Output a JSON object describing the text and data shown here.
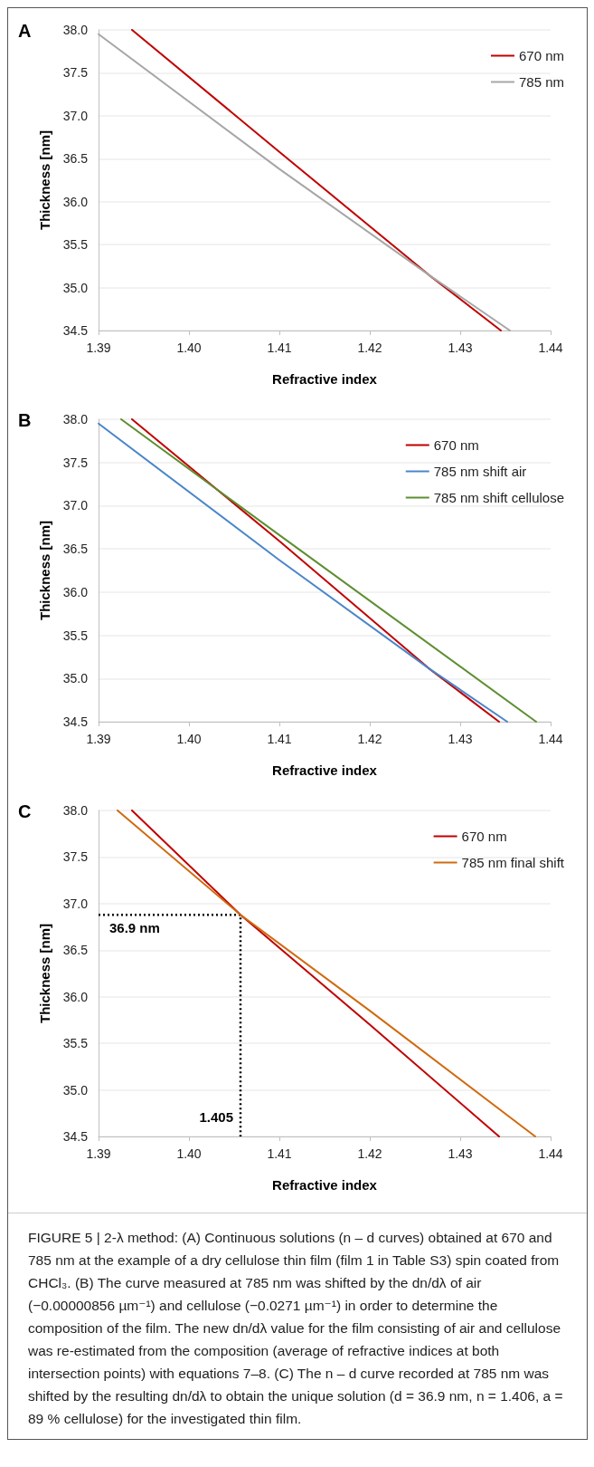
{
  "chart_data": [
    {
      "type": "line",
      "title": "A",
      "xlabel": "Refractive index",
      "ylabel": "Thickness [nm]",
      "xlim": [
        1.39,
        1.44
      ],
      "ylim": [
        34.5,
        38.0
      ],
      "xticks": [
        {
          "value": 1.39,
          "label": "1.39"
        },
        {
          "value": 1.4,
          "label": "1.40"
        },
        {
          "value": 1.41,
          "label": "1.41"
        },
        {
          "value": 1.42,
          "label": "1.42"
        },
        {
          "value": 1.43,
          "label": "1.43"
        },
        {
          "value": 1.44,
          "label": "1.44"
        }
      ],
      "yticks": [
        {
          "value": 34.5,
          "label": "34.5"
        },
        {
          "value": 35.0,
          "label": "35.0"
        },
        {
          "value": 35.5,
          "label": "35.5"
        },
        {
          "value": 36.0,
          "label": "36.0"
        },
        {
          "value": 36.5,
          "label": "36.5"
        },
        {
          "value": 37.0,
          "label": "37.0"
        },
        {
          "value": 37.5,
          "label": "37.5"
        },
        {
          "value": 38.0,
          "label": "38.0"
        }
      ],
      "grid": "y",
      "legend": "top right",
      "marker": "none",
      "line_style": "solid",
      "series": [
        {
          "name": "670 nm",
          "color": "#c00000",
          "x": [
            1.3937,
            1.41,
            1.4265,
            1.4345
          ],
          "values": [
            38.0,
            36.58,
            35.15,
            34.5
          ]
        },
        {
          "name": "785 nm",
          "color": "#a6a6a6",
          "x": [
            1.39,
            1.41,
            1.4265,
            1.4355
          ],
          "values": [
            37.95,
            36.38,
            35.15,
            34.5
          ]
        }
      ]
    },
    {
      "type": "line",
      "title": "B",
      "xlabel": "Refractive index",
      "ylabel": "Thickness [nm]",
      "xlim": [
        1.39,
        1.44
      ],
      "ylim": [
        34.5,
        38.0
      ],
      "xticks": [
        {
          "value": 1.39,
          "label": "1.39"
        },
        {
          "value": 1.4,
          "label": "1.40"
        },
        {
          "value": 1.41,
          "label": "1.41"
        },
        {
          "value": 1.42,
          "label": "1.42"
        },
        {
          "value": 1.43,
          "label": "1.43"
        },
        {
          "value": 1.44,
          "label": "1.44"
        }
      ],
      "yticks": [
        {
          "value": 34.5,
          "label": "34.5"
        },
        {
          "value": 35.0,
          "label": "35.0"
        },
        {
          "value": 35.5,
          "label": "35.5"
        },
        {
          "value": 36.0,
          "label": "36.0"
        },
        {
          "value": 36.5,
          "label": "36.5"
        },
        {
          "value": 37.0,
          "label": "37.0"
        },
        {
          "value": 37.5,
          "label": "37.5"
        },
        {
          "value": 38.0,
          "label": "38.0"
        }
      ],
      "grid": "y",
      "legend": "top right",
      "marker": "none",
      "line_style": "solid",
      "series": [
        {
          "name": "670 nm",
          "color": "#c00000",
          "x": [
            1.3937,
            1.41,
            1.4265,
            1.4343
          ],
          "values": [
            38.0,
            36.59,
            35.12,
            34.5
          ]
        },
        {
          "name": "785 nm shift air",
          "color": "#4a86c8",
          "x": [
            1.39,
            1.41,
            1.4265,
            1.4352
          ],
          "values": [
            37.95,
            36.37,
            35.12,
            34.5
          ]
        },
        {
          "name": "785 nm shift cellulose",
          "color": "#5e8e32",
          "x": [
            1.3925,
            1.41,
            1.4384
          ],
          "values": [
            38.0,
            36.66,
            34.5
          ]
        }
      ]
    },
    {
      "type": "line",
      "title": "C",
      "xlabel": "Refractive index",
      "ylabel": "Thickness [nm]",
      "xlim": [
        1.39,
        1.44
      ],
      "ylim": [
        34.5,
        38.0
      ],
      "xticks": [
        {
          "value": 1.39,
          "label": "1.39"
        },
        {
          "value": 1.4,
          "label": "1.40"
        },
        {
          "value": 1.41,
          "label": "1.41"
        },
        {
          "value": 1.42,
          "label": "1.42"
        },
        {
          "value": 1.43,
          "label": "1.43"
        },
        {
          "value": 1.44,
          "label": "1.44"
        }
      ],
      "yticks": [
        {
          "value": 34.5,
          "label": "34.5"
        },
        {
          "value": 35.0,
          "label": "35.0"
        },
        {
          "value": 35.5,
          "label": "35.5"
        },
        {
          "value": 36.0,
          "label": "36.0"
        },
        {
          "value": 36.5,
          "label": "36.5"
        },
        {
          "value": 37.0,
          "label": "37.0"
        },
        {
          "value": 37.5,
          "label": "37.5"
        },
        {
          "value": 38.0,
          "label": "38.0"
        }
      ],
      "grid": "y",
      "legend": "top right",
      "marker": "none",
      "line_style": "solid",
      "series": [
        {
          "name": "670 nm",
          "color": "#c00000",
          "x": [
            1.3937,
            1.4057,
            1.42,
            1.4343
          ],
          "values": [
            38.0,
            36.88,
            35.7,
            34.5
          ]
        },
        {
          "name": "785 nm final shift",
          "color": "#d06a10",
          "x": [
            1.3921,
            1.4057,
            1.42,
            1.4383
          ],
          "values": [
            38.0,
            36.88,
            35.85,
            34.5
          ]
        },
        {
          "color": "#000000",
          "line_style": "dotted",
          "x": [
            1.39,
            1.4057,
            1.4057
          ],
          "values": [
            36.88,
            36.88,
            34.5
          ]
        }
      ],
      "annotations": [
        {
          "text": "36.9 nm",
          "x": 1.39,
          "y": 36.88
        },
        {
          "text": "1.405",
          "x": 1.4057,
          "y": 34.5
        },
        "FIGURE 5 | 2-λ method: (A) Continuous solutions (n – d curves) obtained at 670 and 785 nm at the example of a dry cellulose thin film (film 1 in Table S3) spin coated from CHCl₃. (B) The curve measured at 785 nm was shifted by the dn/dλ of air (−0.00000856 µm⁻¹) and cellulose (−0.0271 µm⁻¹) in order to determine the composition of the film. The new dn/dλ value for the film consisting of air and cellulose was re-estimated from the composition (average of refractive indices at both intersection points) with equations 7–8. (C) The n – d curve recorded at 785 nm was shifted by the resulting dn/dλ to obtain the unique solution (d = 36.9 nm, n = 1.406, a = 89 % cellulose) for the investigated thin film."
      ]
    }
  ]
}
